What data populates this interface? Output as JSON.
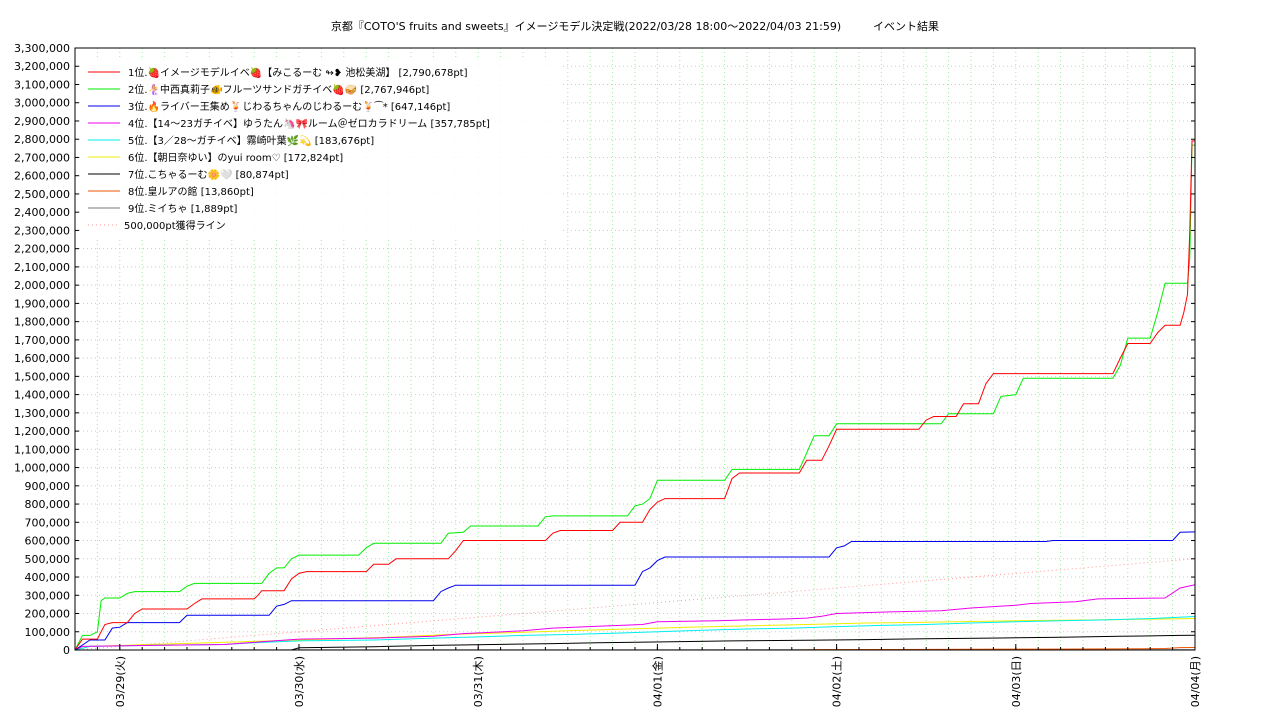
{
  "chart_data": {
    "type": "line",
    "title": "京都『COTO'S fruits and sweets』イメージモデル決定戦(2022/03/28 18:00～2022/04/03 21:59)",
    "subtitle": "イベント結果",
    "xlabel": "",
    "ylabel": "",
    "ylim": [
      0,
      3300000
    ],
    "y_ticks": [
      0,
      100000,
      200000,
      300000,
      400000,
      500000,
      600000,
      700000,
      800000,
      900000,
      1000000,
      1100000,
      1200000,
      1300000,
      1400000,
      1500000,
      1600000,
      1700000,
      1800000,
      1900000,
      2000000,
      2100000,
      2200000,
      2300000,
      2400000,
      2500000,
      2600000,
      2700000,
      2800000,
      2900000,
      3000000,
      3100000,
      3200000,
      3300000
    ],
    "y_tick_labels": [
      "0",
      "100,000",
      "200,000",
      "300,000",
      "400,000",
      "500,000",
      "600,000",
      "700,000",
      "800,000",
      "900,000",
      "1,000,000",
      "1,100,000",
      "1,200,000",
      "1,300,000",
      "1,400,000",
      "1,500,000",
      "1,600,000",
      "1,700,000",
      "1,800,000",
      "1,900,000",
      "2,000,000",
      "2,100,000",
      "2,200,000",
      "2,300,000",
      "2,400,000",
      "2,500,000",
      "2,600,000",
      "2,700,000",
      "2,800,000",
      "2,900,000",
      "3,000,000",
      "3,100,000",
      "3,200,000",
      "3,300,000"
    ],
    "x_unit": "hours since 2022/03/28 18:00",
    "xlim": [
      0,
      150
    ],
    "x_ticks": [
      6,
      30,
      54,
      78,
      102,
      126,
      150
    ],
    "x_tick_labels": [
      "03/29(火)",
      "03/30(水)",
      "03/31(木)",
      "04/01(金)",
      "04/02(土)",
      "04/03(日)",
      "04/04(月)"
    ],
    "grid": true,
    "legend_position": "top-left",
    "series": [
      {
        "name": "1位.🍓イメージモデルイベ🍓【みこるーむ ↬❥ 池松美湖】 [2,790,678pt]",
        "color": "#ff0000",
        "points": [
          [
            0,
            0
          ],
          [
            1,
            60000
          ],
          [
            3,
            60000
          ],
          [
            3.5,
            100000
          ],
          [
            4,
            140000
          ],
          [
            5,
            150000
          ],
          [
            7,
            150000
          ],
          [
            8,
            200000
          ],
          [
            9,
            225000
          ],
          [
            15,
            225000
          ],
          [
            16,
            255000
          ],
          [
            17,
            280000
          ],
          [
            24,
            280000
          ],
          [
            24.5,
            300000
          ],
          [
            25,
            325000
          ],
          [
            28,
            325000
          ],
          [
            29,
            390000
          ],
          [
            30,
            420000
          ],
          [
            31,
            430000
          ],
          [
            39,
            430000
          ],
          [
            40,
            470000
          ],
          [
            42,
            470000
          ],
          [
            43,
            500000
          ],
          [
            50,
            500000
          ],
          [
            51,
            545000
          ],
          [
            52,
            600000
          ],
          [
            63,
            600000
          ],
          [
            64,
            640000
          ],
          [
            65,
            655000
          ],
          [
            72,
            655000
          ],
          [
            73,
            700000
          ],
          [
            76,
            700000
          ],
          [
            77,
            770000
          ],
          [
            78,
            810000
          ],
          [
            79,
            830000
          ],
          [
            87,
            830000
          ],
          [
            88,
            940000
          ],
          [
            89,
            970000
          ],
          [
            97,
            970000
          ],
          [
            98,
            1040000
          ],
          [
            100,
            1040000
          ],
          [
            101,
            1120000
          ],
          [
            102,
            1210000
          ],
          [
            113,
            1210000
          ],
          [
            114,
            1260000
          ],
          [
            115,
            1280000
          ],
          [
            118,
            1280000
          ],
          [
            119,
            1350000
          ],
          [
            121,
            1350000
          ],
          [
            122,
            1460000
          ],
          [
            123,
            1515000
          ],
          [
            139,
            1515000
          ],
          [
            140,
            1600000
          ],
          [
            141,
            1680000
          ],
          [
            144,
            1680000
          ],
          [
            145,
            1740000
          ],
          [
            146,
            1780000
          ],
          [
            148,
            1780000
          ],
          [
            148.5,
            1850000
          ],
          [
            149,
            1950000
          ],
          [
            149.3,
            2300000
          ],
          [
            149.6,
            2790678
          ],
          [
            150,
            2790678
          ]
        ]
      },
      {
        "name": "2位.🧜‍♀️中西真莉子🐠フルーツサンドガチイベ🍓🥪 [2,767,946pt]",
        "color": "#00ee00",
        "points": [
          [
            0,
            0
          ],
          [
            1,
            80000
          ],
          [
            2,
            80000
          ],
          [
            3,
            100000
          ],
          [
            3.5,
            270000
          ],
          [
            4,
            285000
          ],
          [
            6,
            285000
          ],
          [
            7,
            310000
          ],
          [
            8,
            320000
          ],
          [
            14,
            320000
          ],
          [
            15,
            350000
          ],
          [
            16,
            365000
          ],
          [
            25,
            365000
          ],
          [
            26,
            420000
          ],
          [
            27,
            450000
          ],
          [
            28,
            450000
          ],
          [
            29,
            500000
          ],
          [
            30,
            520000
          ],
          [
            38,
            520000
          ],
          [
            39,
            560000
          ],
          [
            40,
            585000
          ],
          [
            49,
            585000
          ],
          [
            50,
            640000
          ],
          [
            52,
            645000
          ],
          [
            53,
            680000
          ],
          [
            62,
            680000
          ],
          [
            63,
            730000
          ],
          [
            64,
            735000
          ],
          [
            74,
            735000
          ],
          [
            75,
            790000
          ],
          [
            76,
            800000
          ],
          [
            77,
            830000
          ],
          [
            78,
            930000
          ],
          [
            87,
            930000
          ],
          [
            88,
            990000
          ],
          [
            97,
            990000
          ],
          [
            98,
            1080000
          ],
          [
            99,
            1175000
          ],
          [
            101,
            1175000
          ],
          [
            102,
            1240000
          ],
          [
            116,
            1240000
          ],
          [
            117,
            1295000
          ],
          [
            123,
            1295000
          ],
          [
            124,
            1390000
          ],
          [
            126,
            1400000
          ],
          [
            127,
            1490000
          ],
          [
            139,
            1490000
          ],
          [
            140,
            1560000
          ],
          [
            141,
            1710000
          ],
          [
            144,
            1710000
          ],
          [
            145,
            1850000
          ],
          [
            146,
            2010000
          ],
          [
            149,
            2010000
          ],
          [
            149.3,
            2150000
          ],
          [
            149.6,
            2767946
          ],
          [
            150,
            2767946
          ]
        ]
      },
      {
        "name": "3位.🔥ライバー王集め🍹じわるちゃんのじわるーむ🍹⁀*  [647,146pt]",
        "color": "#0000ee",
        "points": [
          [
            0,
            0
          ],
          [
            2,
            55000
          ],
          [
            4,
            55000
          ],
          [
            5,
            120000
          ],
          [
            6,
            125000
          ],
          [
            7,
            150000
          ],
          [
            14,
            150000
          ],
          [
            15,
            190000
          ],
          [
            26,
            190000
          ],
          [
            27,
            240000
          ],
          [
            28,
            250000
          ],
          [
            29,
            270000
          ],
          [
            48,
            270000
          ],
          [
            49,
            320000
          ],
          [
            50,
            340000
          ],
          [
            51,
            355000
          ],
          [
            75,
            355000
          ],
          [
            76,
            430000
          ],
          [
            77,
            450000
          ],
          [
            78,
            490000
          ],
          [
            79,
            510000
          ],
          [
            101,
            510000
          ],
          [
            102,
            560000
          ],
          [
            103,
            570000
          ],
          [
            104,
            595000
          ],
          [
            130,
            595000
          ],
          [
            131,
            600000
          ],
          [
            147,
            600000
          ],
          [
            148,
            645000
          ],
          [
            150,
            647146
          ]
        ]
      },
      {
        "name": "4位.【14～23ガチイベ】ゆうたん🦄🎀ルーム＠ゼロカラドリーム [357,785pt]",
        "color": "#ee00ee",
        "points": [
          [
            0,
            0
          ],
          [
            1,
            20000
          ],
          [
            10,
            25000
          ],
          [
            20,
            30000
          ],
          [
            25,
            45000
          ],
          [
            30,
            60000
          ],
          [
            40,
            65000
          ],
          [
            48,
            75000
          ],
          [
            52,
            90000
          ],
          [
            60,
            105000
          ],
          [
            64,
            120000
          ],
          [
            70,
            130000
          ],
          [
            76,
            140000
          ],
          [
            78,
            155000
          ],
          [
            86,
            160000
          ],
          [
            90,
            165000
          ],
          [
            95,
            170000
          ],
          [
            98,
            175000
          ],
          [
            100,
            185000
          ],
          [
            102,
            200000
          ],
          [
            110,
            210000
          ],
          [
            116,
            215000
          ],
          [
            120,
            230000
          ],
          [
            126,
            245000
          ],
          [
            128,
            255000
          ],
          [
            134,
            265000
          ],
          [
            137,
            280000
          ],
          [
            146,
            285000
          ],
          [
            148,
            340000
          ],
          [
            150,
            357785
          ]
        ]
      },
      {
        "name": "5位.【3／28〜ガチイベ】霧崎叶葉🌿💫 [183,676pt]",
        "color": "#00eeee",
        "points": [
          [
            0,
            0
          ],
          [
            2,
            20000
          ],
          [
            10,
            25000
          ],
          [
            20,
            30000
          ],
          [
            24,
            40000
          ],
          [
            30,
            50000
          ],
          [
            40,
            55000
          ],
          [
            48,
            65000
          ],
          [
            54,
            72000
          ],
          [
            60,
            80000
          ],
          [
            66,
            85000
          ],
          [
            72,
            92000
          ],
          [
            78,
            100000
          ],
          [
            84,
            108000
          ],
          [
            90,
            115000
          ],
          [
            96,
            120000
          ],
          [
            102,
            128000
          ],
          [
            108,
            135000
          ],
          [
            114,
            140000
          ],
          [
            120,
            148000
          ],
          [
            126,
            155000
          ],
          [
            132,
            160000
          ],
          [
            138,
            165000
          ],
          [
            144,
            172000
          ],
          [
            150,
            183676
          ]
        ]
      },
      {
        "name": "6位.【朝日奈ゆい】のyui room♡ [172,824pt]",
        "color": "#eeee00",
        "points": [
          [
            0,
            0
          ],
          [
            2,
            20000
          ],
          [
            10,
            30000
          ],
          [
            18,
            40000
          ],
          [
            26,
            50000
          ],
          [
            34,
            60000
          ],
          [
            42,
            70000
          ],
          [
            50,
            85000
          ],
          [
            58,
            95000
          ],
          [
            66,
            105000
          ],
          [
            74,
            115000
          ],
          [
            82,
            125000
          ],
          [
            90,
            132000
          ],
          [
            98,
            140000
          ],
          [
            106,
            148000
          ],
          [
            114,
            152000
          ],
          [
            122,
            158000
          ],
          [
            130,
            162000
          ],
          [
            138,
            166000
          ],
          [
            146,
            170000
          ],
          [
            150,
            172824
          ]
        ]
      },
      {
        "name": "7位.こちゃるーむ🌼🤍 [80,874pt]",
        "color": "#000000",
        "points": [
          [
            0,
            0
          ],
          [
            29,
            0
          ],
          [
            30,
            12000
          ],
          [
            40,
            18000
          ],
          [
            48,
            25000
          ],
          [
            56,
            30000
          ],
          [
            64,
            35000
          ],
          [
            70,
            40000
          ],
          [
            80,
            45000
          ],
          [
            88,
            50000
          ],
          [
            98,
            53000
          ],
          [
            106,
            57000
          ],
          [
            114,
            62000
          ],
          [
            124,
            66000
          ],
          [
            132,
            70000
          ],
          [
            140,
            75000
          ],
          [
            148,
            80000
          ],
          [
            150,
            80874
          ]
        ]
      },
      {
        "name": "8位.皇ルアの館 [13,860pt]",
        "color": "#ee5500",
        "points": [
          [
            0,
            0
          ],
          [
            96,
            0
          ],
          [
            100,
            2000
          ],
          [
            110,
            3000
          ],
          [
            120,
            4000
          ],
          [
            130,
            5000
          ],
          [
            140,
            6000
          ],
          [
            146,
            8000
          ],
          [
            148,
            13000
          ],
          [
            150,
            13860
          ]
        ]
      },
      {
        "name": "9位.ミイちゃ [1,889pt]",
        "color": "#777777",
        "points": [
          [
            0,
            0
          ],
          [
            30,
            500
          ],
          [
            60,
            800
          ],
          [
            90,
            1200
          ],
          [
            120,
            1600
          ],
          [
            150,
            1889
          ]
        ]
      },
      {
        "name": "500,000pt獲得ライン",
        "color": "#ff9999",
        "dashed": true,
        "points": [
          [
            0,
            0
          ],
          [
            150,
            500000
          ]
        ]
      }
    ]
  }
}
